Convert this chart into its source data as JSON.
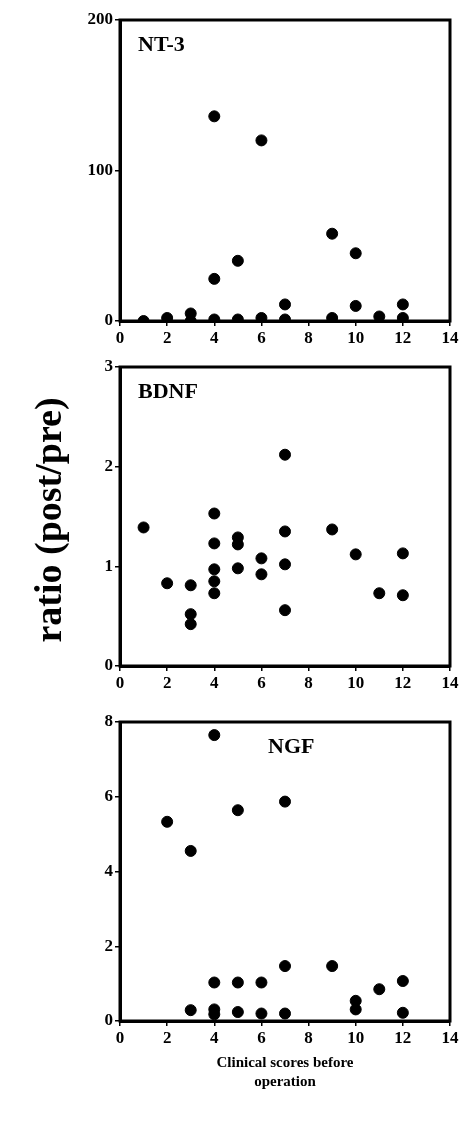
{
  "chart_data": [
    {
      "type": "scatter",
      "title": "NT-3",
      "marker": "circle",
      "xlim": [
        0,
        14
      ],
      "ylim": [
        0,
        200
      ],
      "xticks": [
        0,
        2,
        4,
        6,
        8,
        10,
        12,
        14
      ],
      "yticks": [
        0,
        100,
        200
      ],
      "series": [
        {
          "color": "#000000",
          "x": [
            4,
            6,
            9,
            10,
            4,
            5,
            7,
            10,
            12,
            1,
            2,
            3,
            3,
            4,
            5,
            6,
            7,
            9,
            11,
            12
          ],
          "values": [
            136,
            120,
            58,
            45,
            28,
            40,
            11,
            10,
            11,
            0,
            2,
            5,
            0,
            1,
            1,
            2,
            1,
            2,
            3,
            2
          ]
        }
      ]
    },
    {
      "type": "scatter",
      "title": "BDNF",
      "ylabel": "ratio (post/pre)",
      "marker": "circle",
      "xlim": [
        0,
        14
      ],
      "ylim": [
        0,
        3
      ],
      "xticks": [
        0,
        2,
        4,
        6,
        8,
        10,
        12,
        14
      ],
      "yticks": [
        0,
        1,
        2,
        3
      ],
      "series": [
        {
          "color": "#000000",
          "x": [
            1,
            2,
            3,
            3,
            3,
            4,
            4,
            4,
            4,
            4,
            5,
            5,
            5,
            6,
            6,
            7,
            7,
            7,
            7,
            9,
            10,
            11,
            12,
            12
          ],
          "values": [
            1.39,
            0.83,
            0.81,
            0.52,
            0.42,
            1.53,
            1.23,
            0.97,
            0.85,
            0.73,
            1.29,
            1.22,
            0.98,
            1.08,
            0.92,
            2.12,
            1.35,
            1.02,
            0.56,
            1.37,
            1.12,
            0.73,
            1.13,
            0.71
          ]
        }
      ]
    },
    {
      "type": "scatter",
      "title": "NGF",
      "xlabel": "Clinical scores before operation",
      "marker": "circle",
      "xlim": [
        0,
        14
      ],
      "ylim": [
        0,
        8
      ],
      "xticks": [
        0,
        2,
        4,
        6,
        8,
        10,
        12,
        14
      ],
      "yticks": [
        0,
        2,
        4,
        6,
        8
      ],
      "series": [
        {
          "color": "#000000",
          "x": [
            2,
            3,
            4,
            5,
            7,
            4,
            5,
            6,
            7,
            9,
            11,
            12,
            10,
            10,
            3,
            4,
            4,
            5,
            6,
            7,
            12
          ],
          "values": [
            5.33,
            4.55,
            7.65,
            5.64,
            5.87,
            1.03,
            1.03,
            1.03,
            1.47,
            1.47,
            0.85,
            1.07,
            0.54,
            0.31,
            0.29,
            0.31,
            0.18,
            0.24,
            0.2,
            0.2,
            0.22
          ]
        }
      ]
    }
  ]
}
